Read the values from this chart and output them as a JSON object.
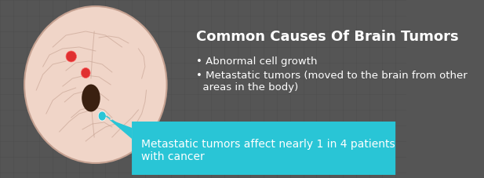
{
  "bg_color": "#555555",
  "grid_color": "#4a4a4a",
  "title": "Common Causes Of Brain Tumors",
  "title_color": "#ffffff",
  "title_fontsize": 13,
  "bullet1": "• Abnormal cell growth",
  "bullet2": "• Metastatic tumors (moved to the brain from other\n  areas in the body)",
  "bullet_color": "#ffffff",
  "bullet_fontsize": 9.5,
  "callout_text": "Metastatic tumors affect nearly 1 in 4 patients\nwith cancer",
  "callout_bg": "#29c5d6",
  "callout_text_color": "#ffffff",
  "callout_fontsize": 10,
  "brain_fill": "#f0d5c8",
  "brain_stroke": "#c4a090",
  "tumor_red": "#e03030",
  "tumor_blue": "#29c5d6",
  "tumor_dark": "#3a2010"
}
